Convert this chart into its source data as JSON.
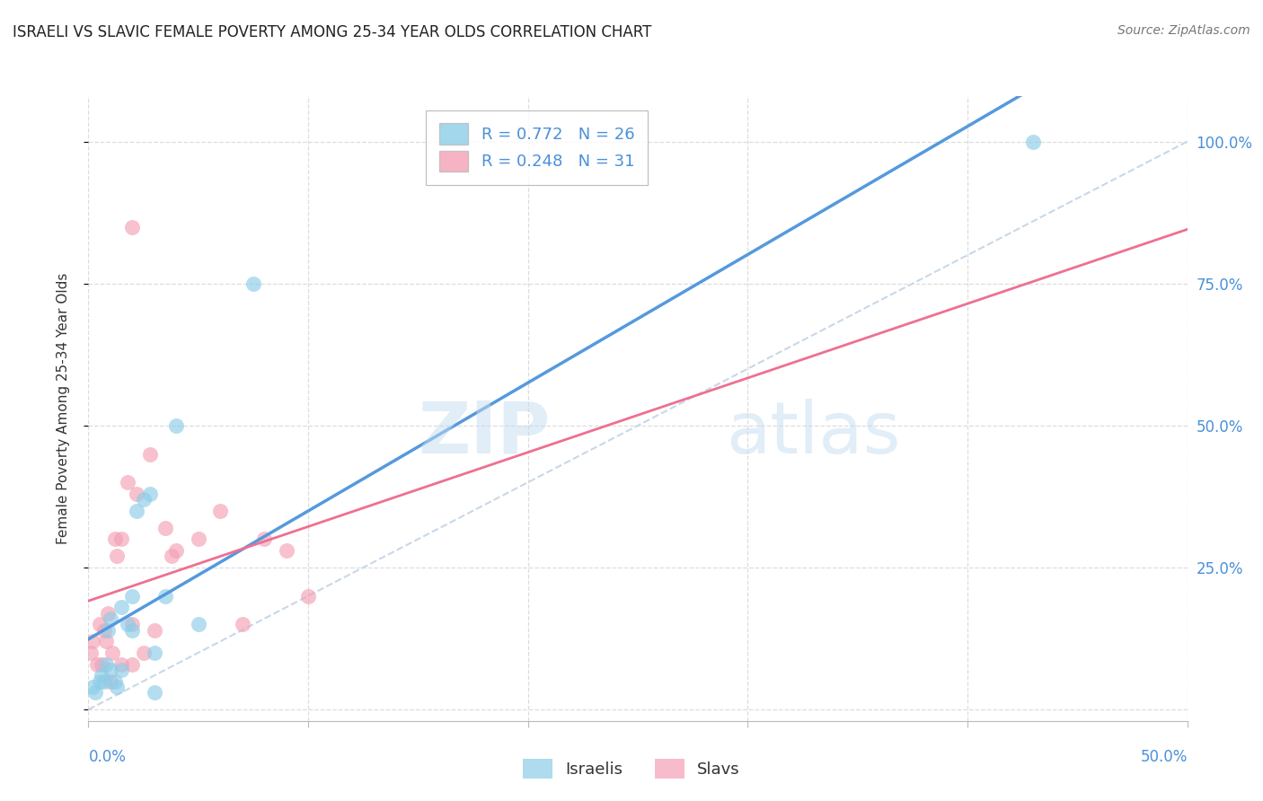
{
  "title": "ISRAELI VS SLAVIC FEMALE POVERTY AMONG 25-34 YEAR OLDS CORRELATION CHART",
  "source": "Source: ZipAtlas.com",
  "ylabel": "Female Poverty Among 25-34 Year Olds",
  "xlim": [
    0.0,
    0.5
  ],
  "ylim": [
    -0.02,
    1.08
  ],
  "y_ticks": [
    0.0,
    0.25,
    0.5,
    0.75,
    1.0
  ],
  "right_y_tick_labels": [
    "",
    "25.0%",
    "50.0%",
    "75.0%",
    "100.0%"
  ],
  "legend_r1": "R = 0.772",
  "legend_n1": "N = 26",
  "legend_r2": "R = 0.248",
  "legend_n2": "N = 31",
  "color_israeli": "#8CCDE8",
  "color_slavic": "#F4A0B5",
  "color_line_israeli": "#5599DD",
  "color_line_slavic": "#EE7090",
  "color_trendline_dashed": "#C8D8E8",
  "watermark_zip": "ZIP",
  "watermark_atlas": "atlas",
  "israelis_x": [
    0.002,
    0.003,
    0.005,
    0.006,
    0.007,
    0.008,
    0.009,
    0.01,
    0.01,
    0.012,
    0.013,
    0.015,
    0.015,
    0.018,
    0.02,
    0.02,
    0.022,
    0.025,
    0.028,
    0.03,
    0.03,
    0.035,
    0.04,
    0.05,
    0.075,
    0.43
  ],
  "israelis_y": [
    0.04,
    0.03,
    0.05,
    0.06,
    0.05,
    0.08,
    0.14,
    0.07,
    0.16,
    0.05,
    0.04,
    0.07,
    0.18,
    0.15,
    0.14,
    0.2,
    0.35,
    0.37,
    0.38,
    0.03,
    0.1,
    0.2,
    0.5,
    0.15,
    0.75,
    1.0
  ],
  "slavs_x": [
    0.001,
    0.002,
    0.004,
    0.005,
    0.006,
    0.007,
    0.008,
    0.009,
    0.01,
    0.011,
    0.012,
    0.013,
    0.015,
    0.015,
    0.018,
    0.02,
    0.02,
    0.022,
    0.025,
    0.028,
    0.03,
    0.035,
    0.038,
    0.04,
    0.05,
    0.06,
    0.07,
    0.08,
    0.09,
    0.1,
    0.02
  ],
  "slavs_y": [
    0.1,
    0.12,
    0.08,
    0.15,
    0.08,
    0.14,
    0.12,
    0.17,
    0.05,
    0.1,
    0.3,
    0.27,
    0.08,
    0.3,
    0.4,
    0.08,
    0.15,
    0.38,
    0.1,
    0.45,
    0.14,
    0.32,
    0.27,
    0.28,
    0.3,
    0.35,
    0.15,
    0.3,
    0.28,
    0.2,
    0.85
  ],
  "isr_line_x0": 0.0,
  "isr_line_y0": 0.04,
  "isr_line_x1": 0.43,
  "isr_line_y1": 1.0,
  "slv_line_x0": 0.0,
  "slv_line_y0": 0.15,
  "slv_line_x1": 0.1,
  "slv_line_y1": 0.33,
  "background_color": "#FFFFFF",
  "grid_color": "#DDDDDD"
}
